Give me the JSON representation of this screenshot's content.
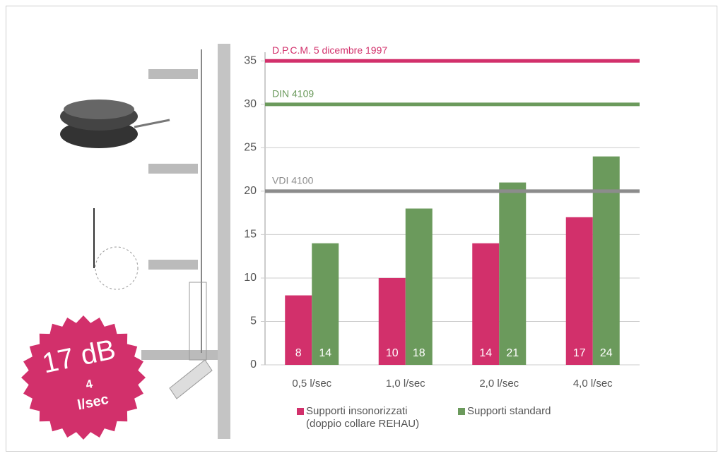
{
  "chart_data": {
    "type": "bar",
    "categories": [
      "0,5 l/sec",
      "1,0 l/sec",
      "2,0 l/sec",
      "4,0 l/sec"
    ],
    "series": [
      {
        "name": "Supporti insonorizzati (doppio collare REHAU)",
        "color": "#d2306b",
        "values": [
          8,
          10,
          14,
          17
        ]
      },
      {
        "name": "Supporti standard",
        "color": "#6b9a5c",
        "values": [
          14,
          18,
          21,
          24
        ]
      }
    ],
    "reference_lines": [
      {
        "label": "D.P.C.M. 5 dicembre 1997",
        "value": 35,
        "color": "#d2306b"
      },
      {
        "label": "DIN 4109",
        "value": 30,
        "color": "#6b9a5c"
      },
      {
        "label": "VDI 4100",
        "value": 20,
        "color": "#8c8c8c"
      }
    ],
    "ylim": [
      0,
      36
    ],
    "yticks": [
      0,
      5,
      10,
      15,
      20,
      25,
      30,
      35
    ],
    "grid": true,
    "badge": {
      "value_text": "17 dB",
      "flow": "4",
      "unit": "l/sec"
    }
  }
}
